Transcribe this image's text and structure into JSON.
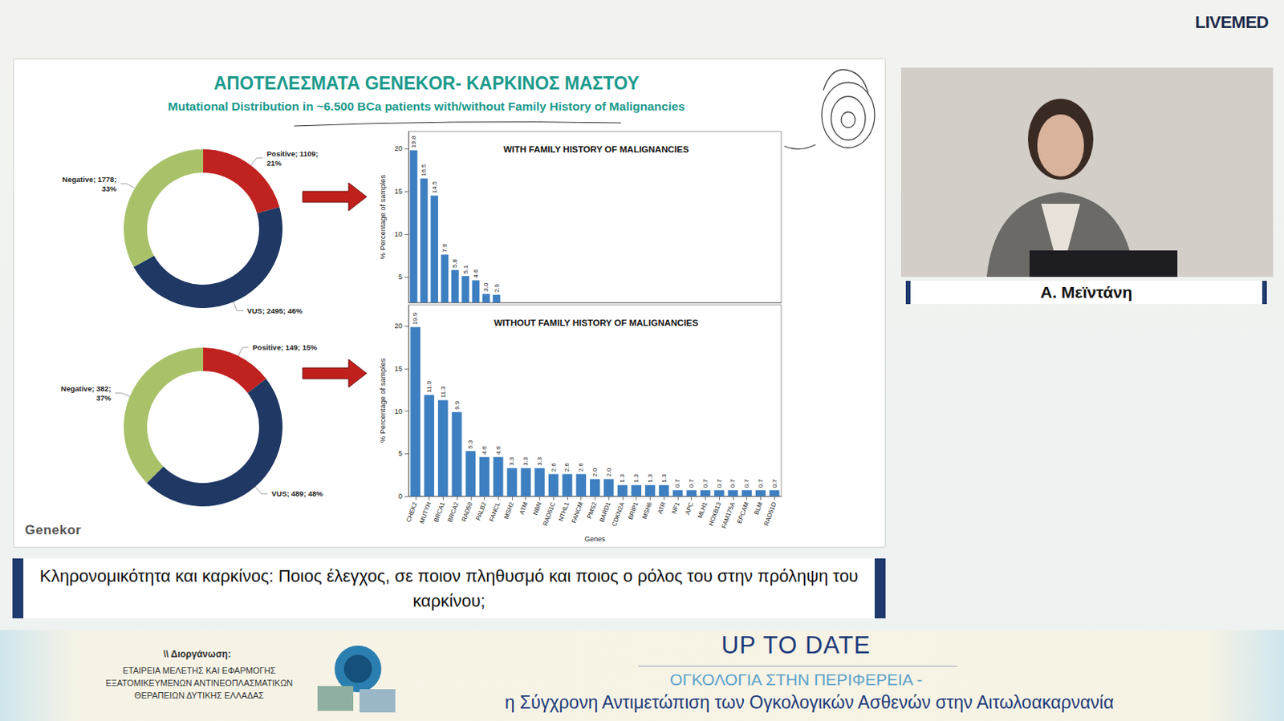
{
  "page": {
    "brand": "LIVEMED",
    "slide": {
      "title": "ΑΠΟΤΕΛΕΣΜΑΤΑ GENEKOR- ΚΑΡΚΙΝΟΣ ΜΑΣΤΟΥ",
      "subtitle": "Mutational Distribution in ~6.500 BCa patients with/without Family History of Malignancies",
      "logo": "Genekor"
    },
    "caption": "Κληρονομικότητα και καρκίνος: Ποιος έλεγχος, σε ποιον πληθυσμό και ποιος ο ρόλος του στην πρόληψη του καρκίνου;",
    "speaker": "Α. Μεϊντάνη",
    "footer": {
      "organizer_label": "\\\\ Διοργάνωση:",
      "organizer": [
        "ΕΤΑΙΡΕΙΑ ΜΕΛΕΤΗΣ ΚΑΙ ΕΦΑΡΜΟΓΗΣ",
        "ΕΞΑΤΟΜΙΚΕΥΜΕΝΩΝ ΑΝΤΙΝΕΟΠΛΑΣΜΑΤΙΚΩΝ",
        "ΘΕΡΑΠΕΙΩΝ ΔΥΤΙΚΗΣ ΕΛΛΑΔΑΣ"
      ],
      "event_title": "UP TO DATE",
      "event_subtitle": "ΟΓΚΟΛΟΓΙΑ ΣΤΗΝ ΠΕΡΙΦΕΡΕΙΑ -",
      "event_tagline": "η Σύγχρονη Αντιμετώπιση των Ογκολογικών Ασθενών στην Αιτωλοακαρνανία"
    }
  },
  "chart_data": [
    {
      "type": "pie",
      "categories": [
        "Positive",
        "VUS",
        "Negative"
      ],
      "values": [
        1109,
        2495,
        1778
      ],
      "value_labels": [
        "Positive; 1109;\n21%",
        "VUS; 2495; 46%",
        "Negative; 1778;\n33%"
      ],
      "colors": [
        "#c0221f",
        "#1f3864",
        "#a9c26a"
      ],
      "data_labels": true
    },
    {
      "type": "bar",
      "title": "WITH FAMILY HISTORY OF MALIGNANCIES",
      "ylabel": "% Percentage of samples",
      "categories": [
        null,
        null,
        null,
        null,
        null,
        null,
        null,
        null,
        null,
        null,
        null,
        null,
        null,
        null,
        null,
        null,
        null,
        null,
        null,
        null,
        null,
        null,
        null,
        null,
        null,
        null,
        null,
        null,
        null,
        null,
        null,
        null,
        null,
        null,
        null,
        null
      ],
      "values": [
        19.8,
        16.5,
        14.5,
        7.6,
        5.8,
        5.1,
        4.6,
        3.0,
        2.9,
        null,
        null,
        null,
        null,
        null,
        null,
        null,
        null,
        null,
        null,
        null,
        null,
        null,
        null,
        null,
        null,
        null,
        null,
        null,
        null,
        null,
        null,
        null,
        null,
        null,
        null,
        null
      ],
      "value_labels": [
        "19.8",
        "16.5",
        "14.5",
        "7.6",
        "5.8",
        "5.1",
        "4.6",
        "3.0",
        "2.9",
        null,
        null,
        null,
        null,
        null,
        null,
        null,
        null,
        null,
        null,
        null,
        null,
        null,
        null,
        null,
        null,
        null,
        null,
        null,
        null,
        null,
        null,
        null,
        null,
        null,
        null,
        null
      ],
      "color": "#3d7fc1",
      "ylim": [
        2,
        22
      ],
      "yticks": [
        5,
        10,
        15,
        20
      ],
      "grid": false,
      "data_labels": true,
      "tick_labels": "y"
    },
    {
      "type": "pie",
      "categories": [
        "Positive",
        "VUS",
        "Negative"
      ],
      "values": [
        149,
        489,
        382
      ],
      "value_labels": [
        "Positive; 149; 15%",
        "VUS; 489; 48%",
        "Negative; 382;\n37%"
      ],
      "colors": [
        "#c0221f",
        "#1f3864",
        "#a9c26a"
      ],
      "data_labels": true
    },
    {
      "type": "bar",
      "title": "WITHOUT FAMILY HISTORY OF MALIGNANCIES",
      "xlabel": "Genes",
      "ylabel": "% Percentage of samples",
      "categories": [
        "CHEK2",
        "MUTYH",
        "BRCA1",
        "BRCA2",
        "RAD50",
        "PALB2",
        "FANCL",
        "MSH2",
        "ATM",
        "NBN",
        "RAD51C",
        "NTHL1",
        "FANCM",
        "PMS2",
        "BARD1",
        "CDKN2A",
        "BRIP1",
        "MSH6",
        "ATR",
        "NF1",
        "APC",
        "MLH1",
        "HOXB13",
        "FAM175A",
        "EPCAM",
        "BLM",
        "RAD51D"
      ],
      "values": [
        19.9,
        11.9,
        11.3,
        9.9,
        5.3,
        4.6,
        4.6,
        3.3,
        3.3,
        3.3,
        2.6,
        2.6,
        2.6,
        2.0,
        2.0,
        1.3,
        1.3,
        1.3,
        1.3,
        0.7,
        0.7,
        0.7,
        0.7,
        0.7,
        0.7,
        0.7,
        0.7
      ],
      "value_labels": [
        "19.9",
        "11.9",
        "11.3",
        "9.9",
        "5.3",
        "4.6",
        "4.6",
        "3.3",
        "3.3",
        "3.3",
        "2.6",
        "2.6",
        "2.6",
        "2.0",
        "2.0",
        "1.3",
        "1.3",
        "1.3",
        "1.3",
        "0.7",
        "0.7",
        "0.7",
        "0.7",
        "0.7",
        "0.7",
        "0.7",
        "0.7"
      ],
      "color": "#3d7fc1",
      "ylim": [
        0,
        22.5
      ],
      "yticks": [
        0,
        5,
        10,
        15,
        20
      ],
      "grid": false,
      "data_labels": true,
      "tick_labels": true
    }
  ]
}
